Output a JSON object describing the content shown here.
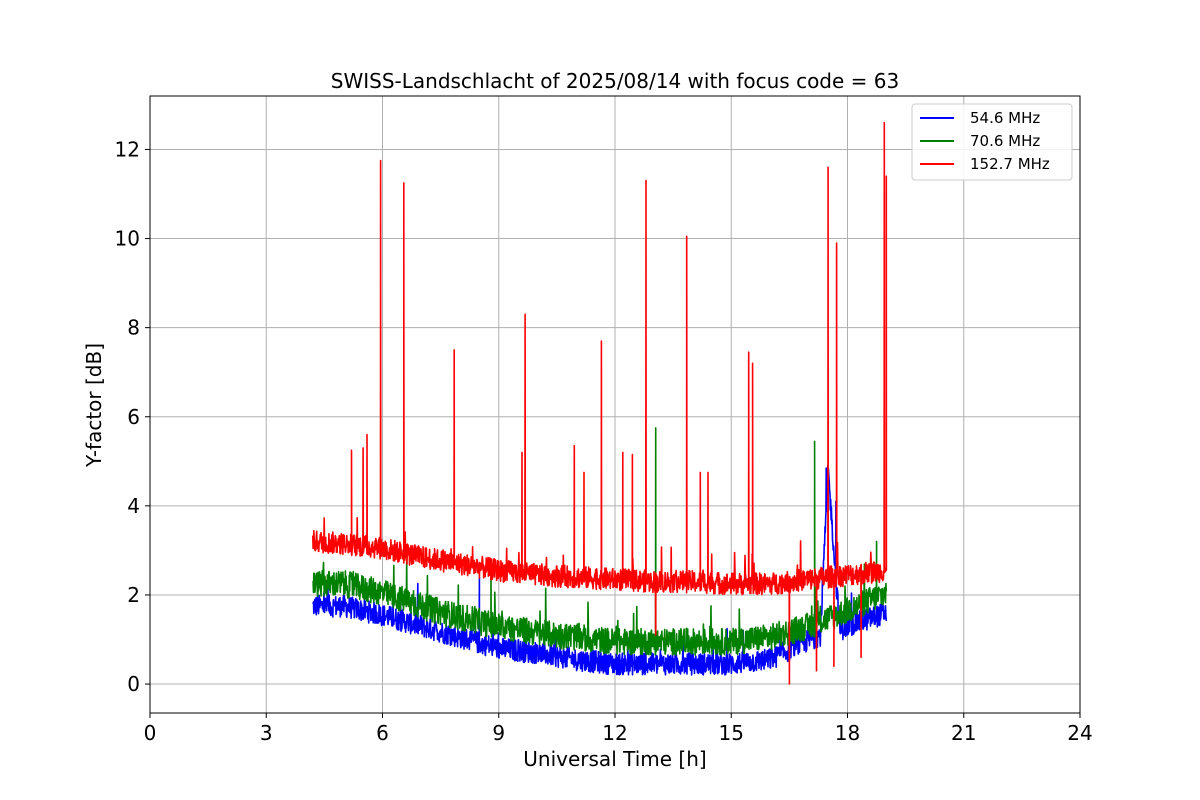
{
  "chart_data": {
    "type": "line",
    "title": "SWISS-Landschlacht of 2025/08/14 with focus code = 63",
    "xlabel": "Universal Time [h]",
    "ylabel": "Y-factor [dB]",
    "xlim": [
      0,
      24
    ],
    "ylim": [
      -0.65,
      13.2
    ],
    "xticks": [
      0,
      3,
      6,
      9,
      12,
      15,
      18,
      21,
      24
    ],
    "yticks": [
      0,
      2,
      4,
      6,
      8,
      10,
      12
    ],
    "grid": true,
    "legend_position": "top-right",
    "series": [
      {
        "name": "54.6 MHz",
        "color": "#0000ff",
        "x": [
          4.2,
          5.0,
          6.0,
          7.0,
          8.0,
          9.0,
          10.0,
          11.0,
          12.0,
          13.0,
          14.0,
          15.0,
          16.0,
          16.8,
          17.3,
          17.5,
          17.8,
          18.0,
          18.5,
          19.0
        ],
        "y": [
          1.75,
          1.75,
          1.55,
          1.3,
          1.05,
          0.8,
          0.7,
          0.55,
          0.45,
          0.45,
          0.45,
          0.45,
          0.55,
          0.9,
          1.1,
          4.8,
          1.2,
          1.3,
          1.45,
          1.6
        ],
        "noise": 0.25,
        "spikes": [
          [
            17.45,
            4.85
          ],
          [
            17.7,
            4.1
          ],
          [
            8.5,
            2.4
          ]
        ]
      },
      {
        "name": "70.6 MHz",
        "color": "#008000",
        "x": [
          4.2,
          5.0,
          6.0,
          7.0,
          8.0,
          9.0,
          10.0,
          11.0,
          12.0,
          13.0,
          14.0,
          15.0,
          16.0,
          17.0,
          18.0,
          19.0
        ],
        "y": [
          2.25,
          2.25,
          2.05,
          1.75,
          1.5,
          1.3,
          1.15,
          1.05,
          0.95,
          0.95,
          0.95,
          0.95,
          1.05,
          1.3,
          1.65,
          2.05
        ],
        "noise": 0.3,
        "spikes": [
          [
            13.05,
            5.75
          ],
          [
            17.15,
            5.45
          ],
          [
            18.75,
            3.2
          ],
          [
            8.8,
            2.5
          ]
        ]
      },
      {
        "name": "152.7 MHz",
        "color": "#ff0000",
        "x": [
          4.2,
          5.0,
          6.0,
          7.0,
          8.0,
          9.0,
          10.0,
          11.0,
          12.0,
          13.0,
          14.0,
          15.0,
          16.0,
          17.0,
          18.0,
          19.0
        ],
        "y": [
          3.2,
          3.15,
          3.05,
          2.85,
          2.7,
          2.55,
          2.45,
          2.4,
          2.35,
          2.3,
          2.3,
          2.25,
          2.25,
          2.35,
          2.45,
          2.55
        ],
        "noise": 0.25,
        "spikes": [
          [
            5.2,
            5.25
          ],
          [
            5.5,
            5.3
          ],
          [
            5.6,
            5.6
          ],
          [
            5.95,
            11.75
          ],
          [
            6.55,
            11.25
          ],
          [
            7.85,
            7.5
          ],
          [
            9.6,
            5.2
          ],
          [
            9.68,
            8.3
          ],
          [
            10.95,
            5.35
          ],
          [
            11.2,
            4.75
          ],
          [
            11.65,
            7.7
          ],
          [
            12.2,
            5.2
          ],
          [
            12.45,
            5.15
          ],
          [
            12.8,
            11.3
          ],
          [
            13.85,
            10.05
          ],
          [
            14.2,
            4.75
          ],
          [
            14.4,
            4.75
          ],
          [
            15.45,
            7.45
          ],
          [
            15.55,
            7.2
          ],
          [
            17.5,
            11.6
          ],
          [
            17.72,
            9.9
          ],
          [
            18.95,
            12.6
          ],
          [
            19.0,
            11.4
          ]
        ],
        "dips": [
          [
            13.05,
            1.1
          ],
          [
            16.5,
            0.0
          ],
          [
            17.2,
            0.3
          ],
          [
            17.65,
            0.4
          ],
          [
            18.35,
            0.6
          ]
        ]
      }
    ]
  }
}
